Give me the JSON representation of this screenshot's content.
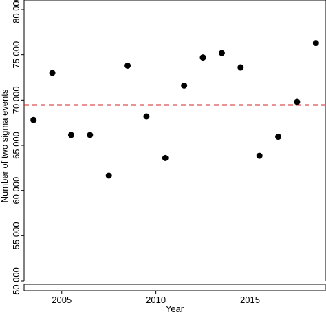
{
  "chart_data": {
    "type": "scatter",
    "xlabel": "Year",
    "ylabel": "Number of two sigma events",
    "xlim": [
      2003,
      2019
    ],
    "ylim": [
      50000,
      80000
    ],
    "x_ticks": [
      2005,
      2010,
      2015
    ],
    "x_tick_labels": [
      "2005",
      "2010",
      "2015"
    ],
    "y_ticks": [
      50000,
      55000,
      60000,
      65000,
      70000,
      75000,
      80000
    ],
    "y_tick_labels": [
      "50 000",
      "55 000",
      "60 000",
      "65 000",
      "70 000",
      "75 000",
      "80 000"
    ],
    "points": [
      {
        "x": 2003.5,
        "y": 67800
      },
      {
        "x": 2004.5,
        "y": 73000
      },
      {
        "x": 2005.5,
        "y": 66150
      },
      {
        "x": 2006.5,
        "y": 66150
      },
      {
        "x": 2007.5,
        "y": 61650
      },
      {
        "x": 2008.5,
        "y": 73800
      },
      {
        "x": 2009.5,
        "y": 68200
      },
      {
        "x": 2010.5,
        "y": 63600
      },
      {
        "x": 2011.5,
        "y": 71600
      },
      {
        "x": 2012.5,
        "y": 74700
      },
      {
        "x": 2013.5,
        "y": 75200
      },
      {
        "x": 2014.5,
        "y": 73600
      },
      {
        "x": 2015.5,
        "y": 63850
      },
      {
        "x": 2016.5,
        "y": 65950
      },
      {
        "x": 2017.5,
        "y": 69800
      },
      {
        "x": 2018.5,
        "y": 76300
      }
    ],
    "reference_line": {
      "y": 69450,
      "style": "dashed",
      "color": "#d62728"
    },
    "marker_color": "#000000",
    "axis_break": true,
    "grid": false
  }
}
